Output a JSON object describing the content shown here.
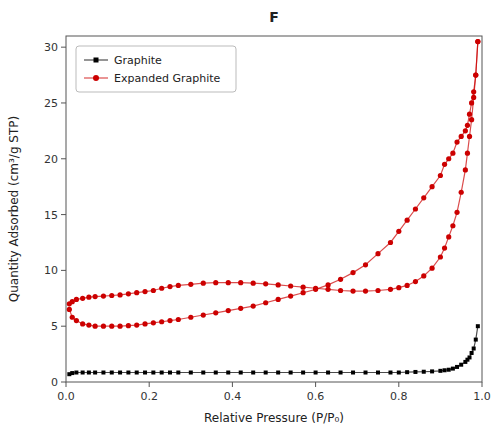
{
  "chart_data": {
    "type": "line",
    "title": "F",
    "x_label": "Relative Pressure (P/P₀)",
    "y_label": "Quantity Adsorbed (cm³/g STP)",
    "xlim": [
      0.0,
      1.0
    ],
    "ylim": [
      0.0,
      31.0
    ],
    "xticks": [
      {
        "value": 0.0,
        "label": "0.0"
      },
      0.2,
      0.4,
      0.6,
      0.8,
      {
        "value": 1.0,
        "label": "1.0"
      }
    ],
    "yticks": [
      0,
      5,
      10,
      15,
      20,
      25,
      30
    ],
    "grid": false,
    "legend": "upper left",
    "series": [
      {
        "name": "Graphite",
        "color": "#000000",
        "marker": "square",
        "line_style": "solid",
        "x": [
          0.008,
          0.015,
          0.025,
          0.04,
          0.055,
          0.07,
          0.09,
          0.11,
          0.13,
          0.15,
          0.17,
          0.19,
          0.21,
          0.23,
          0.25,
          0.27,
          0.3,
          0.33,
          0.36,
          0.39,
          0.42,
          0.45,
          0.48,
          0.51,
          0.54,
          0.57,
          0.6,
          0.63,
          0.66,
          0.69,
          0.72,
          0.75,
          0.78,
          0.8,
          0.82,
          0.84,
          0.86,
          0.88,
          0.9,
          0.91,
          0.92,
          0.93,
          0.94,
          0.95,
          0.96,
          0.965,
          0.97,
          0.975,
          0.98,
          0.985,
          0.99
        ],
        "values": [
          0.7,
          0.8,
          0.85,
          0.85,
          0.85,
          0.85,
          0.85,
          0.85,
          0.85,
          0.85,
          0.85,
          0.85,
          0.85,
          0.85,
          0.85,
          0.85,
          0.85,
          0.85,
          0.85,
          0.85,
          0.85,
          0.85,
          0.85,
          0.85,
          0.85,
          0.85,
          0.85,
          0.85,
          0.85,
          0.85,
          0.85,
          0.85,
          0.85,
          0.85,
          0.88,
          0.9,
          0.92,
          0.95,
          1.0,
          1.05,
          1.1,
          1.2,
          1.35,
          1.55,
          1.8,
          2.0,
          2.2,
          2.6,
          3.0,
          3.8,
          5.0
        ]
      },
      {
        "name": "Expanded Graphite",
        "color": "#cc0000",
        "marker": "circle",
        "line_style": "solid",
        "x": [
          0.008,
          0.015,
          0.025,
          0.04,
          0.055,
          0.07,
          0.09,
          0.11,
          0.13,
          0.15,
          0.17,
          0.19,
          0.21,
          0.23,
          0.25,
          0.27,
          0.3,
          0.33,
          0.36,
          0.39,
          0.42,
          0.45,
          0.48,
          0.51,
          0.54,
          0.57,
          0.6,
          0.63,
          0.66,
          0.69,
          0.72,
          0.75,
          0.78,
          0.8,
          0.82,
          0.84,
          0.86,
          0.88,
          0.9,
          0.91,
          0.92,
          0.93,
          0.94,
          0.95,
          0.96,
          0.965,
          0.97,
          0.975,
          0.98,
          0.985,
          0.99
        ],
        "values": [
          7.0,
          7.2,
          7.4,
          7.5,
          7.6,
          7.65,
          7.7,
          7.75,
          7.8,
          7.9,
          8.0,
          8.1,
          8.2,
          8.4,
          8.55,
          8.65,
          8.75,
          8.85,
          8.9,
          8.9,
          8.9,
          8.85,
          8.8,
          8.7,
          8.6,
          8.5,
          8.4,
          8.3,
          8.2,
          8.15,
          8.15,
          8.2,
          8.3,
          8.45,
          8.65,
          9.0,
          9.5,
          10.2,
          11.2,
          12.0,
          13.0,
          14.0,
          15.2,
          17.0,
          19.0,
          20.5,
          22.0,
          23.5,
          25.5,
          27.5,
          30.5
        ]
      },
      {
        "color": "#cc0000",
        "marker": "circle",
        "line_style": "solid",
        "x": [
          0.99,
          0.985,
          0.98,
          0.975,
          0.97,
          0.965,
          0.96,
          0.95,
          0.94,
          0.93,
          0.92,
          0.91,
          0.9,
          0.88,
          0.86,
          0.84,
          0.82,
          0.8,
          0.78,
          0.75,
          0.72,
          0.69,
          0.66,
          0.63,
          0.6,
          0.57,
          0.54,
          0.51,
          0.48,
          0.45,
          0.42,
          0.39,
          0.36,
          0.33,
          0.3,
          0.27,
          0.25,
          0.23,
          0.21,
          0.19,
          0.17,
          0.15,
          0.13,
          0.11,
          0.09,
          0.07,
          0.055,
          0.04,
          0.025,
          0.015,
          0.008
        ],
        "values": [
          30.5,
          27.5,
          26.0,
          25.0,
          24.0,
          23.0,
          22.5,
          22.0,
          21.5,
          20.5,
          20.0,
          19.5,
          18.5,
          17.5,
          16.5,
          15.5,
          14.5,
          13.5,
          12.5,
          11.5,
          10.5,
          9.8,
          9.2,
          8.7,
          8.3,
          8.0,
          7.7,
          7.4,
          7.1,
          6.8,
          6.6,
          6.4,
          6.2,
          6.0,
          5.8,
          5.6,
          5.5,
          5.4,
          5.3,
          5.2,
          5.1,
          5.05,
          5.0,
          5.0,
          5.0,
          5.0,
          5.1,
          5.2,
          5.5,
          5.8,
          6.5
        ]
      }
    ]
  }
}
